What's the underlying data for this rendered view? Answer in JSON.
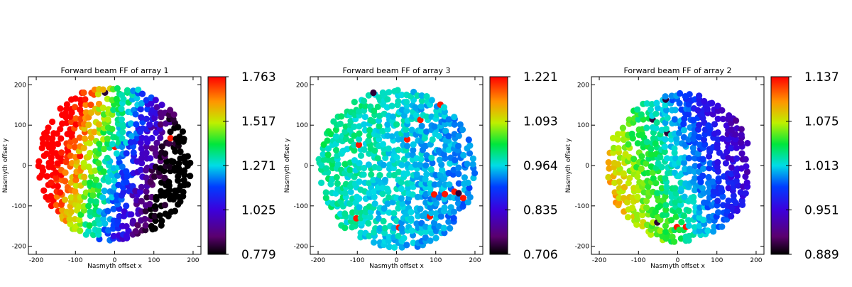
{
  "chart_data": [
    {
      "type": "scatter",
      "title": "Forward beam FF of array 1",
      "xlabel": "Nasmyth offset x",
      "ylabel": "Nasmyth offset y",
      "xlim": [
        -220,
        220
      ],
      "ylim": [
        -220,
        220
      ],
      "xticks": [
        -200,
        -100,
        0,
        100,
        200
      ],
      "yticks": [
        -200,
        -100,
        0,
        100,
        200
      ],
      "colorbar": {
        "min": 0.779,
        "max": 1.763,
        "ticks": [
          "1.763",
          "1.517",
          "1.271",
          "1.025",
          "0.779"
        ]
      },
      "pattern": {
        "center": [
          0,
          5
        ],
        "radius": 195,
        "gradient": [
          -0.55,
          0.15
        ],
        "spread": 0.42,
        "noise": 0.12,
        "stripe_angle_deg": 15,
        "stripe_spacing": 24
      }
    },
    {
      "type": "scatter",
      "title": "Forward beam FF of array 3",
      "xlabel": "Nasmyth offset x",
      "ylabel": "Nasmyth offset y",
      "xlim": [
        -220,
        220
      ],
      "ylim": [
        -220,
        220
      ],
      "xticks": [
        -200,
        -100,
        0,
        100,
        200
      ],
      "yticks": [
        -200,
        -100,
        0,
        100,
        200
      ],
      "colorbar": {
        "min": 0.706,
        "max": 1.221,
        "ticks": [
          "1.221",
          "1.093",
          "0.964",
          "0.835",
          "0.706"
        ]
      },
      "pattern": {
        "center": [
          0,
          -10
        ],
        "radius": 200,
        "gradient": [
          -0.08,
          0.02
        ],
        "spread": 0.62,
        "noise": 0.12,
        "stripe_angle_deg": 15,
        "stripe_spacing": 30
      }
    },
    {
      "type": "scatter",
      "title": "Forward beam FF of array 2",
      "xlabel": "Nasmyth offset x",
      "ylabel": "Nasmyth offset y",
      "xlim": [
        -220,
        220
      ],
      "ylim": [
        -220,
        220
      ],
      "xticks": [
        -200,
        -100,
        0,
        100,
        200
      ],
      "yticks": [
        -200,
        -100,
        0,
        100,
        200
      ],
      "colorbar": {
        "min": 0.889,
        "max": 1.137,
        "ticks": [
          "1.137",
          "1.075",
          "1.013",
          "0.951",
          "0.889"
        ]
      },
      "pattern": {
        "center": [
          5,
          -5
        ],
        "radius": 185,
        "gradient": [
          -0.3,
          -0.1
        ],
        "spread": 0.52,
        "noise": 0.1,
        "stripe_angle_deg": 15,
        "stripe_spacing": 32
      }
    }
  ]
}
